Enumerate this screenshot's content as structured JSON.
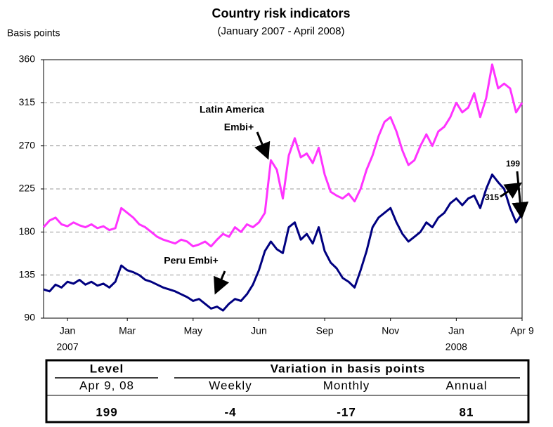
{
  "chart_data": {
    "type": "line",
    "title": "Country risk indicators",
    "subtitle": "(January 2007 - April 2008)",
    "y_label": "Basis points",
    "x": [
      0,
      1,
      2,
      3,
      4,
      5,
      6,
      7,
      8,
      9,
      10,
      11,
      12,
      13,
      14,
      15,
      16,
      17,
      18,
      19,
      20,
      21,
      22,
      23,
      24,
      25,
      26,
      27,
      28,
      29,
      30,
      31,
      32,
      33,
      34,
      35,
      36,
      37,
      38,
      39,
      40,
      41,
      42,
      43,
      44,
      45,
      46,
      47,
      48,
      49,
      50,
      51,
      52,
      53,
      54,
      55,
      56,
      57,
      58,
      59,
      60,
      61,
      62,
      63,
      64,
      65,
      66,
      67,
      68,
      69,
      70,
      71,
      72,
      73,
      74,
      75,
      76,
      77,
      78,
      79,
      80
    ],
    "series": [
      {
        "name": "Latin America Embi+",
        "color": "#ff33ff",
        "values": [
          185,
          192,
          195,
          188,
          186,
          190,
          187,
          185,
          188,
          184,
          186,
          182,
          184,
          205,
          200,
          195,
          188,
          185,
          180,
          175,
          172,
          170,
          168,
          172,
          170,
          165,
          167,
          170,
          165,
          172,
          178,
          175,
          185,
          180,
          188,
          185,
          190,
          200,
          255,
          245,
          215,
          260,
          278,
          258,
          262,
          252,
          268,
          240,
          222,
          218,
          215,
          220,
          212,
          225,
          245,
          260,
          280,
          295,
          300,
          285,
          265,
          250,
          255,
          270,
          282,
          270,
          285,
          290,
          300,
          315,
          305,
          310,
          325,
          300,
          320,
          355,
          330,
          335,
          330,
          305,
          315
        ]
      },
      {
        "name": "Peru Embi+",
        "color": "#000080",
        "values": [
          120,
          118,
          125,
          122,
          128,
          126,
          130,
          125,
          128,
          124,
          126,
          122,
          128,
          145,
          140,
          138,
          135,
          130,
          128,
          125,
          122,
          120,
          118,
          115,
          112,
          108,
          110,
          105,
          100,
          102,
          98,
          105,
          110,
          108,
          115,
          125,
          140,
          160,
          170,
          162,
          158,
          185,
          190,
          172,
          178,
          168,
          185,
          160,
          148,
          142,
          132,
          128,
          122,
          140,
          160,
          185,
          195,
          200,
          205,
          190,
          178,
          170,
          175,
          180,
          190,
          185,
          195,
          200,
          210,
          215,
          208,
          215,
          218,
          205,
          225,
          240,
          232,
          225,
          205,
          190,
          199
        ]
      }
    ],
    "annotations": [
      "Latin America",
      "Embi+",
      "Peru Embi+",
      "315",
      "199"
    ],
    "xlim": [
      0,
      80
    ],
    "xticks": [
      {
        "value": 4,
        "label": "Jan"
      },
      {
        "value": 14,
        "label": "Mar"
      },
      {
        "value": 25,
        "label": "May"
      },
      {
        "value": 36,
        "label": "Jun"
      },
      {
        "value": 47,
        "label": "Sep"
      },
      {
        "value": 58,
        "label": "Nov"
      },
      {
        "value": 69,
        "label": "Jan"
      },
      {
        "value": 80,
        "label": "Apr 9"
      }
    ],
    "x_year_labels": [
      {
        "value": 4,
        "label": "2007"
      },
      {
        "value": 69,
        "label": "2008"
      }
    ],
    "ylim": [
      90,
      360
    ],
    "yticks": [
      90,
      135,
      180,
      225,
      270,
      315,
      360
    ],
    "grid": true
  },
  "table": {
    "header": [
      "Level",
      "Variation in basis points"
    ],
    "subheader": [
      "Apr 9, 08",
      "Weekly",
      "Monthly",
      "Annual"
    ],
    "values": [
      199,
      -4,
      -17,
      81
    ]
  }
}
